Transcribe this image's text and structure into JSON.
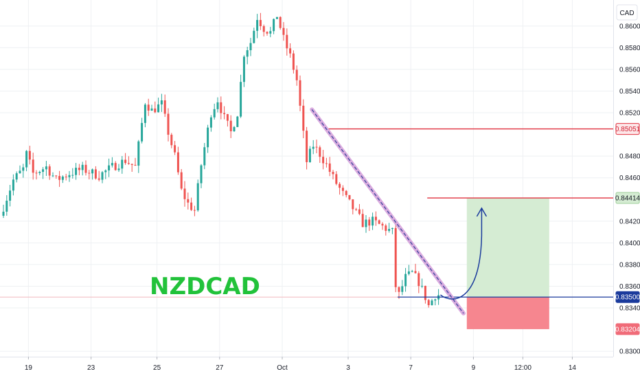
{
  "chart_data": {
    "type": "candlestick",
    "symbol": "NZDCAD",
    "currency": "CAD",
    "ylim": [
      0.8295,
      0.8624
    ],
    "y_ticks": [
      "0.86000",
      "0.85800",
      "0.85600",
      "0.85400",
      "0.85200",
      "0.84800",
      "0.84600",
      "0.84200",
      "0.84000",
      "0.83800",
      "0.83600",
      "0.83400",
      "0.83000"
    ],
    "x_ticks": [
      {
        "label": "19",
        "index": 8
      },
      {
        "label": "23",
        "index": 27
      },
      {
        "label": "25",
        "index": 47
      },
      {
        "label": "27",
        "index": 66
      },
      {
        "label": "Oct",
        "index": 85
      },
      {
        "label": "3",
        "index": 105
      },
      {
        "label": "7",
        "index": 124
      },
      {
        "label": "9",
        "index": 143
      },
      {
        "label": "12:00",
        "index": 158
      },
      {
        "label": "14",
        "index": 173
      }
    ],
    "bars_shown": 133,
    "price_path": [
      [
        0,
        0.8425
      ],
      [
        4,
        0.8458
      ],
      [
        7,
        0.8468
      ],
      [
        8,
        0.8482
      ],
      [
        10,
        0.8464
      ],
      [
        14,
        0.847
      ],
      [
        17,
        0.8458
      ],
      [
        21,
        0.8464
      ],
      [
        25,
        0.8468
      ],
      [
        30,
        0.8462
      ],
      [
        34,
        0.847
      ],
      [
        38,
        0.8476
      ],
      [
        41,
        0.847
      ],
      [
        44,
        0.853
      ],
      [
        46,
        0.8522
      ],
      [
        49,
        0.8528
      ],
      [
        51,
        0.8502
      ],
      [
        53,
        0.848
      ],
      [
        55,
        0.8448
      ],
      [
        57,
        0.8436
      ],
      [
        59,
        0.843
      ],
      [
        61,
        0.8472
      ],
      [
        64,
        0.852
      ],
      [
        66,
        0.8532
      ],
      [
        68,
        0.8515
      ],
      [
        70,
        0.8502
      ],
      [
        72,
        0.852
      ],
      [
        74,
        0.8575
      ],
      [
        76,
        0.8585
      ],
      [
        78,
        0.8608
      ],
      [
        80,
        0.8598
      ],
      [
        82,
        0.8594
      ],
      [
        84,
        0.861
      ],
      [
        86,
        0.8588
      ],
      [
        88,
        0.8572
      ],
      [
        90,
        0.855
      ],
      [
        92,
        0.85
      ],
      [
        93,
        0.8475
      ],
      [
        95,
        0.849
      ],
      [
        97,
        0.8482
      ],
      [
        99,
        0.8472
      ],
      [
        101,
        0.846
      ],
      [
        104,
        0.8445
      ],
      [
        107,
        0.8432
      ],
      [
        110,
        0.8418
      ],
      [
        113,
        0.842
      ],
      [
        116,
        0.8415
      ],
      [
        119,
        0.841
      ],
      [
        120,
        0.836
      ],
      [
        121,
        0.8352
      ],
      [
        123,
        0.8368
      ],
      [
        125,
        0.8372
      ],
      [
        127,
        0.8364
      ],
      [
        129,
        0.835
      ],
      [
        130,
        0.8342
      ],
      [
        132,
        0.8352
      ]
    ],
    "levels": [
      {
        "name": "resistance",
        "price": 0.85051,
        "label": "0.85051",
        "color": "#e0303e"
      },
      {
        "name": "target",
        "price": 0.84414,
        "label": "0.84414",
        "color": "#e0303e"
      },
      {
        "name": "support",
        "price": 0.835,
        "label": "0.83500",
        "color": "#1a3a9c"
      },
      {
        "name": "stop",
        "price": 0.83204,
        "label": "0.83204",
        "color": "#f06b78"
      }
    ],
    "trendline": {
      "from": [
        94,
        0.8523
      ],
      "to": [
        140,
        0.8335
      ]
    },
    "position": {
      "entry": 0.835,
      "target": 0.84414,
      "stop": 0.83204,
      "from_index": 141,
      "to_index": 166
    },
    "colors": {
      "up": "#26a69a",
      "down": "#ef5350",
      "profit_zone": "#d5ecd3",
      "loss_zone": "#f6868f",
      "trendline": "#d7a3dc",
      "arrow": "#1a3a9c",
      "symbol": "#22c23a",
      "grid": "#eef0f3"
    }
  }
}
